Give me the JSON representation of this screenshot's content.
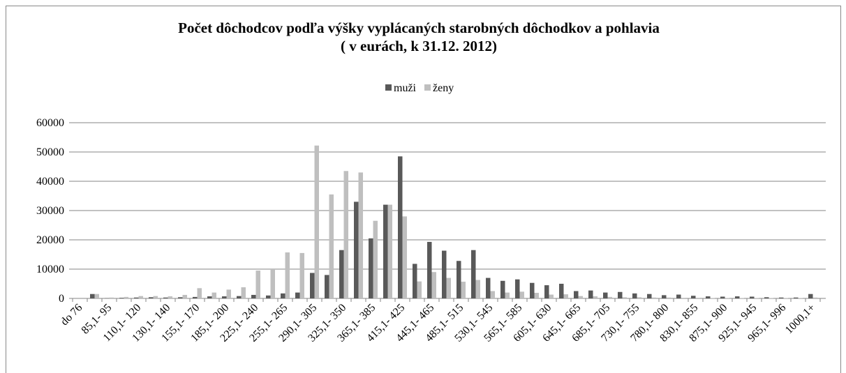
{
  "chart_data": {
    "type": "bar",
    "title": "Počet dôchodcov podľa  výšky vyplácaných starobných dôchodkov a pohlavia",
    "subtitle": "( v eurách, k 31.12. 2012)",
    "categories": [
      "do 76",
      null,
      "85,1- 95",
      null,
      "110,1- 120",
      null,
      "130,1- 140",
      null,
      "155,1- 170",
      null,
      "185,1- 200",
      null,
      "225,1- 240",
      null,
      "255,1- 265",
      null,
      "290,1- 305",
      null,
      "325,1- 350",
      null,
      "365,1- 385",
      null,
      "415,1- 425",
      null,
      "445,1- 465",
      null,
      "485,1- 515",
      null,
      "530,1- 545",
      null,
      "565,1- 585",
      null,
      "605,1- 630",
      null,
      "645,1- 665",
      null,
      "685,1- 705",
      null,
      "730,1- 755",
      null,
      "780,1- 800",
      null,
      "830,1- 855",
      null,
      "875,1- 900",
      null,
      "925,1- 945",
      null,
      "965,1- 996",
      null,
      "1000,1+"
    ],
    "series": [
      {
        "name": "muži",
        "color": "#595959",
        "values": [
          0,
          1500,
          100,
          200,
          300,
          400,
          300,
          400,
          500,
          700,
          700,
          800,
          1200,
          1000,
          1700,
          2000,
          8700,
          8000,
          16500,
          33000,
          20500,
          32000,
          48500,
          11800,
          19300,
          16300,
          12800,
          16500,
          7000,
          6000,
          6500,
          5300,
          4500,
          5000,
          2500,
          2700,
          2000,
          2200,
          1700,
          1500,
          1100,
          1300,
          900,
          700,
          600,
          700,
          600,
          400,
          300,
          300,
          1500
        ]
      },
      {
        "name": "ženy",
        "color": "#bfbfbf",
        "values": [
          0,
          1500,
          300,
          500,
          800,
          800,
          700,
          1200,
          3500,
          2000,
          3000,
          3800,
          9500,
          10000,
          15700,
          15500,
          52200,
          35500,
          43500,
          43000,
          26500,
          32000,
          28000,
          5800,
          9000,
          7000,
          5700,
          6300,
          2500,
          2000,
          2300,
          1900,
          1300,
          1400,
          800,
          700,
          500,
          400,
          400,
          300,
          300,
          200,
          200,
          100,
          100,
          100,
          100,
          100,
          100,
          100,
          300
        ]
      }
    ],
    "ylim": [
      0,
      60000
    ],
    "yticks": [
      0,
      10000,
      20000,
      30000,
      40000,
      50000,
      60000
    ],
    "grid": true,
    "legend": "top"
  }
}
